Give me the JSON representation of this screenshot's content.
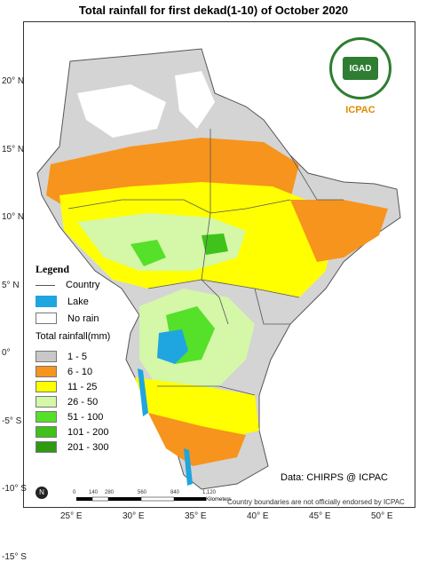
{
  "title": "Total rainfall for  first dekad(1-10)  of October 2020",
  "y_ticks": [
    {
      "label": "20° N",
      "value": 20
    },
    {
      "label": "15° N",
      "value": 15
    },
    {
      "label": "10° N",
      "value": 10
    },
    {
      "label": "5° N",
      "value": 5
    },
    {
      "label": "0°",
      "value": 0
    },
    {
      "label": "-5° S",
      "value": -5
    },
    {
      "label": "-10° S",
      "value": -10
    },
    {
      "label": "-15° S",
      "value": -15
    }
  ],
  "x_ticks": [
    {
      "label": "25° E",
      "value": 25
    },
    {
      "label": "30° E",
      "value": 30
    },
    {
      "label": "35° E",
      "value": 35
    },
    {
      "label": "40° E",
      "value": 40
    },
    {
      "label": "45° E",
      "value": 45
    },
    {
      "label": "50° E",
      "value": 50
    }
  ],
  "legend": {
    "title": "Legend",
    "country": "Country",
    "lake": "Lake",
    "no_rain": "No rain",
    "total_title": "Total rainfall(mm)",
    "classes": [
      {
        "label": "1 - 5",
        "color": "#c8c8c8"
      },
      {
        "label": "6 - 10",
        "color": "#f7941d"
      },
      {
        "label": "11 - 25",
        "color": "#ffff00"
      },
      {
        "label": "26 - 50",
        "color": "#d4f7a8"
      },
      {
        "label": "51 - 100",
        "color": "#55e02a"
      },
      {
        "label": "101 - 200",
        "color": "#3fc21a"
      },
      {
        "label": "201 - 300",
        "color": "#2f9a10"
      }
    ],
    "lake_color": "#1fa5e0"
  },
  "logo": {
    "name": "IGAD",
    "org": "ICPAC"
  },
  "source": "Data: CHIRPS @ ICPAC",
  "scale": {
    "ticks": [
      "0",
      "140",
      "280",
      "560",
      "840",
      "1,120"
    ],
    "unit": "Kilometers"
  },
  "north_label": "N",
  "disclaimer": "Country boundaries are not officially endorsed by ICPAC"
}
